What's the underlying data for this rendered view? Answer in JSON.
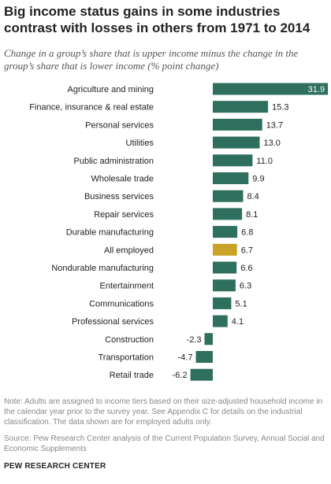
{
  "title": "Big income status gains in some industries contrast with losses in others from 1971 to 2014",
  "subtitle": "Change in a group’s share that is upper income minus the change in the group’s share that is lower income (% point change)",
  "note": "Note: Adults are assigned to income tiers based on their size-adjusted household income in the calendar year prior to the survey year. See Appendix C for details on the industrial classification. The data shown are for employed adults only.",
  "source": "Source: Pew Research Center analysis of the Current Population Survey, Annual Social and Economic Supplements",
  "credit": "PEW RESEARCH CENTER",
  "colors": {
    "bar": "#2e6f5e",
    "highlight": "#c9a227",
    "label_on_bar": "#ffffff",
    "label": "#222222"
  },
  "chart_data": {
    "type": "bar",
    "orientation": "horizontal",
    "categories": [
      "Agriculture and mining",
      "Finance, insurance & real estate",
      "Personal services",
      "Utilities",
      "Public administration",
      "Wholesale trade",
      "Business services",
      "Repair services",
      "Durable manufacturing",
      "All employed",
      "Nondurable manufacturing",
      "Entertainment",
      "Communications",
      "Professional services",
      "Construction",
      "Transportation",
      "Retail trade"
    ],
    "values": [
      31.9,
      15.3,
      13.7,
      13.0,
      11.0,
      9.9,
      8.4,
      8.1,
      6.8,
      6.7,
      6.6,
      6.3,
      5.1,
      4.1,
      -2.3,
      -4.7,
      -6.2
    ],
    "value_labels": [
      "31.9",
      "15.3",
      "13.7",
      "13.0",
      "11.0",
      "9.9",
      "8.4",
      "8.1",
      "6.8",
      "6.7",
      "6.6",
      "6.3",
      "5.1",
      "4.1",
      "-2.3",
      "-4.7",
      "-6.2"
    ],
    "highlight": "All employed",
    "xlim": [
      -6.2,
      31.9
    ],
    "grid": false,
    "legend": "none"
  }
}
